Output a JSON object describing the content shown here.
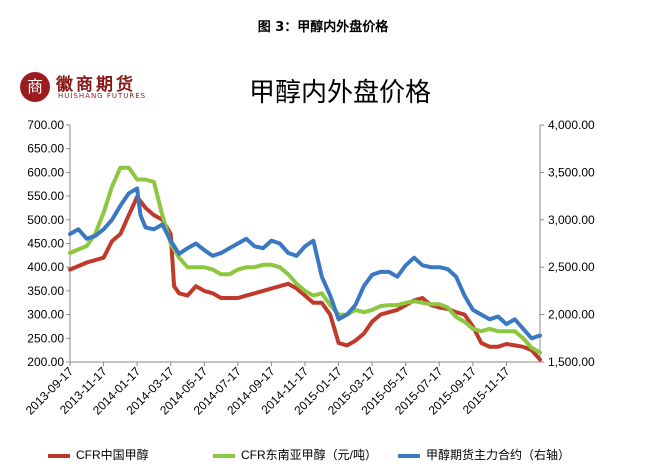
{
  "figure_caption": "图 3：甲醇内外盘价格",
  "logo": {
    "cn": "徽商期货",
    "en": "HUISHANG FUTURES",
    "mark": "商"
  },
  "chart_data": {
    "type": "line",
    "title": "甲醇内外盘价格",
    "y_left": {
      "min": 200,
      "max": 700,
      "ticks": [
        "700.00",
        "650.00",
        "600.00",
        "550.00",
        "500.00",
        "450.00",
        "400.00",
        "350.00",
        "300.00",
        "250.00",
        "200.00"
      ]
    },
    "y_right": {
      "min": 1500,
      "max": 4000,
      "ticks": [
        "4,000.00",
        "3,500.00",
        "3,000.00",
        "2,500.00",
        "2,000.00",
        "1,500.00"
      ]
    },
    "x_labels": [
      "2013-09-17",
      "2013-11-17",
      "2014-01-17",
      "2014-03-17",
      "2014-05-17",
      "2014-07-17",
      "2014-09-17",
      "2014-11-17",
      "2015-01-17",
      "2015-03-17",
      "2015-05-17",
      "2015-07-17",
      "2015-09-17",
      "2015-11-17"
    ],
    "x_range": [
      0,
      28
    ],
    "grid": false,
    "legend_position": "bottom",
    "series": [
      {
        "name": "CFR中国甲醇",
        "axis": "left",
        "color": "#c0392b",
        "x": [
          0,
          1,
          2,
          2.5,
          3,
          3.5,
          4,
          4.5,
          5,
          5.5,
          6,
          6.2,
          6.5,
          7,
          7.5,
          8,
          8.5,
          9,
          10,
          10.5,
          11,
          11.5,
          12,
          12.5,
          13,
          13.5,
          14,
          14.5,
          15,
          15.5,
          16,
          16.5,
          17,
          17.5,
          18,
          18.5,
          19,
          19.5,
          20,
          20.5,
          21,
          21.5,
          22,
          22.5,
          23,
          23.5,
          24,
          24.5,
          25,
          25.5,
          26,
          26.5,
          27,
          27.5,
          28
        ],
        "y": [
          395,
          410,
          420,
          455,
          470,
          510,
          548,
          525,
          510,
          500,
          470,
          360,
          345,
          340,
          360,
          350,
          345,
          335,
          335,
          340,
          345,
          350,
          355,
          360,
          365,
          355,
          340,
          325,
          325,
          300,
          240,
          235,
          245,
          260,
          285,
          300,
          305,
          310,
          320,
          330,
          335,
          320,
          315,
          312,
          305,
          300,
          275,
          240,
          232,
          232,
          238,
          235,
          232,
          225,
          205
        ]
      },
      {
        "name": "CFR东南亚甲醇（元/吨）",
        "axis": "left",
        "color": "#8dc63f",
        "x": [
          0,
          1,
          1.5,
          2,
          2.5,
          3,
          3.5,
          4,
          4.5,
          5,
          5.5,
          6,
          6.5,
          7,
          7.5,
          8,
          8.5,
          9,
          9.5,
          10,
          10.5,
          11,
          11.5,
          12,
          12.5,
          13,
          13.5,
          14,
          14.5,
          15,
          15.5,
          16,
          16.5,
          17,
          17.5,
          18,
          18.5,
          19,
          19.5,
          20,
          20.5,
          21,
          21.5,
          22,
          22.5,
          23,
          23.5,
          24,
          24.5,
          25,
          25.5,
          26,
          26.5,
          27,
          27.5,
          28
        ],
        "y": [
          430,
          445,
          470,
          515,
          570,
          610,
          610,
          585,
          585,
          580,
          510,
          450,
          420,
          400,
          400,
          400,
          395,
          385,
          385,
          395,
          400,
          400,
          405,
          405,
          400,
          385,
          365,
          350,
          340,
          345,
          320,
          300,
          300,
          310,
          305,
          310,
          318,
          320,
          320,
          325,
          328,
          325,
          322,
          322,
          315,
          295,
          285,
          270,
          265,
          270,
          265,
          265,
          265,
          250,
          230,
          220
        ]
      },
      {
        "name": "甲醇期货主力合约（右轴）",
        "axis": "right",
        "color": "#3b78c3",
        "x": [
          0,
          0.5,
          1,
          1.5,
          2,
          2.5,
          3,
          3.5,
          4,
          4.2,
          4.5,
          5,
          5.5,
          6,
          6.5,
          7,
          7.5,
          8,
          8.5,
          9,
          9.5,
          10,
          10.5,
          11,
          11.5,
          12,
          12.5,
          13,
          13.5,
          14,
          14.5,
          15,
          15.5,
          16,
          16.5,
          17,
          17.5,
          18,
          18.5,
          19,
          19.5,
          20,
          20.5,
          21,
          21.5,
          22,
          22.5,
          23,
          23.5,
          24,
          24.5,
          25,
          25.5,
          26,
          26.5,
          27,
          27.5,
          28
        ],
        "y": [
          2850,
          2900,
          2800,
          2830,
          2900,
          3000,
          3150,
          3280,
          3330,
          3050,
          2920,
          2900,
          2950,
          2780,
          2640,
          2700,
          2750,
          2680,
          2620,
          2650,
          2700,
          2750,
          2800,
          2720,
          2700,
          2780,
          2750,
          2650,
          2620,
          2720,
          2780,
          2400,
          2200,
          1950,
          2000,
          2100,
          2300,
          2420,
          2450,
          2450,
          2400,
          2520,
          2600,
          2520,
          2500,
          2500,
          2480,
          2400,
          2200,
          2050,
          2000,
          1950,
          1980,
          1900,
          1950,
          1850,
          1750,
          1780
        ]
      }
    ]
  }
}
